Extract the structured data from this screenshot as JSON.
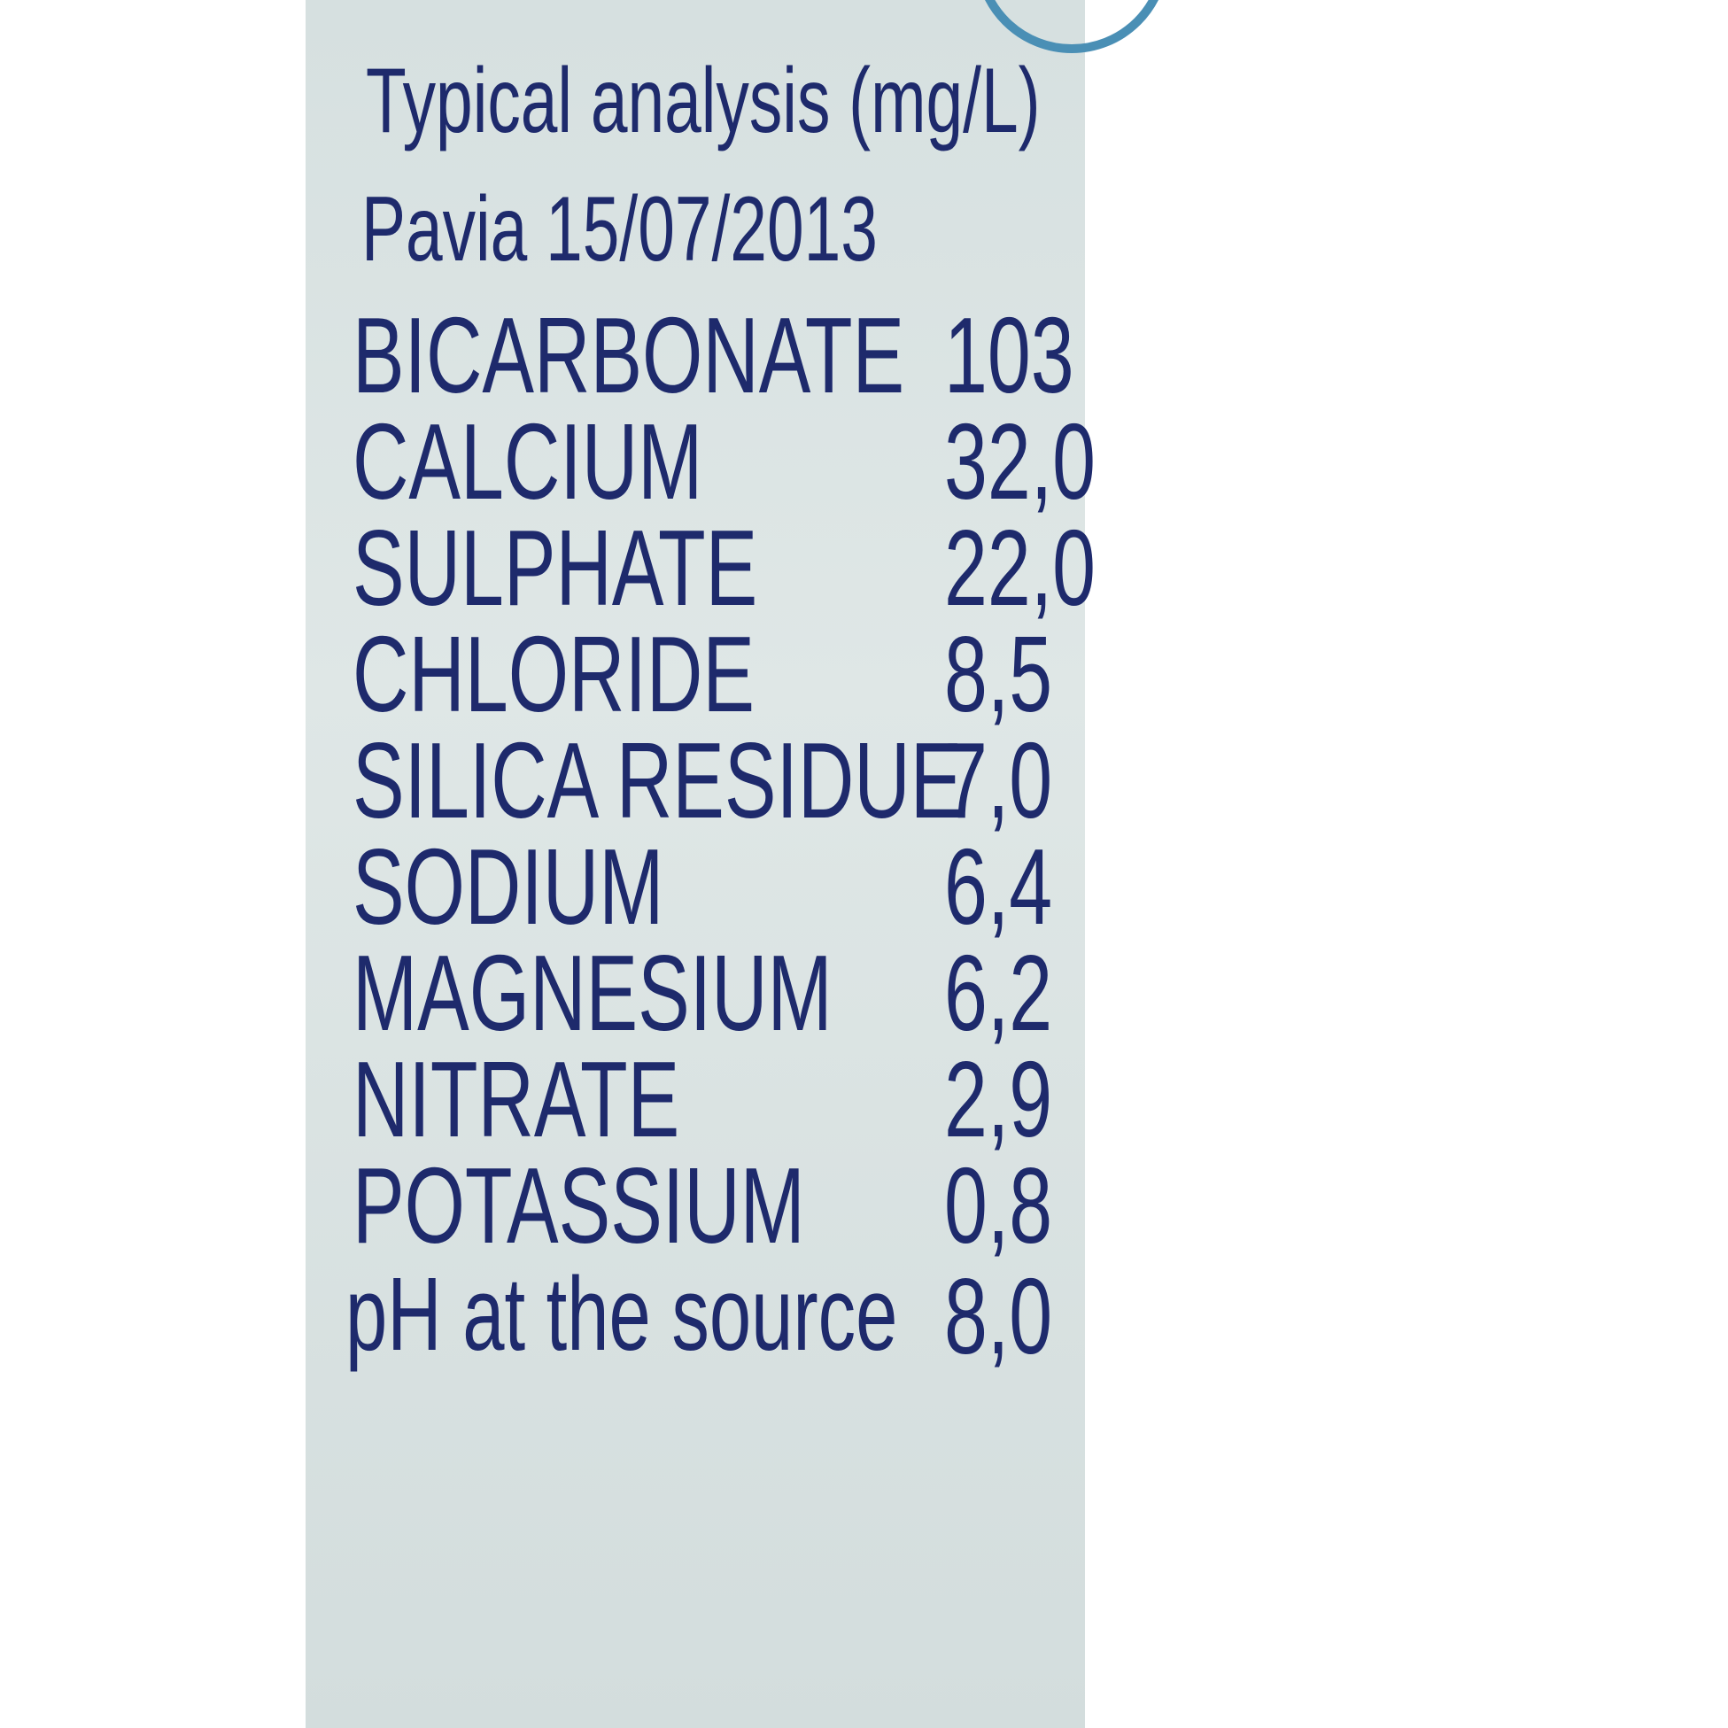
{
  "title": "Typical analysis (mg/L)",
  "subtitle": "Pavia 15/07/2013",
  "rows": [
    {
      "name": "BICARBONATE",
      "value": "103"
    },
    {
      "name": "CALCIUM",
      "value": "32,0"
    },
    {
      "name": "SULPHATE",
      "value": "22,0"
    },
    {
      "name": "CHLORIDE",
      "value": "8,5"
    },
    {
      "name": "SILICA RESIDUE",
      "value": "7,0"
    },
    {
      "name": "SODIUM",
      "value": "6,4"
    },
    {
      "name": "MAGNESIUM",
      "value": "6,2"
    },
    {
      "name": "NITRATE",
      "value": "2,9"
    },
    {
      "name": "POTASSIUM",
      "value": "0,8"
    },
    {
      "name": "pH at the source",
      "value": "8,0"
    }
  ],
  "colors": {
    "text": "#1e2a6c",
    "label_bg": "#d9e3e3",
    "accent": "#4a8fb5"
  }
}
